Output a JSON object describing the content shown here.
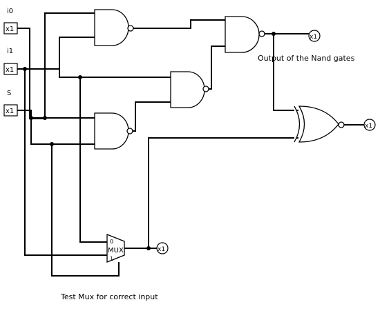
{
  "inputs": {
    "i0": {
      "label": "i0",
      "value": "x1"
    },
    "i1": {
      "label": "i1",
      "value": "x1"
    },
    "s": {
      "label": "S",
      "value": "x1"
    }
  },
  "outputs": {
    "nand_out": {
      "value": "x1"
    },
    "xnor_out": {
      "value": "x1"
    },
    "mux_out": {
      "value": "x1"
    }
  },
  "mux": {
    "label": "MUX",
    "input0": "0",
    "input1": "1"
  },
  "annotations": {
    "nand_caption": "Output of the Nand gates",
    "mux_caption": "Test Mux for correct input"
  }
}
